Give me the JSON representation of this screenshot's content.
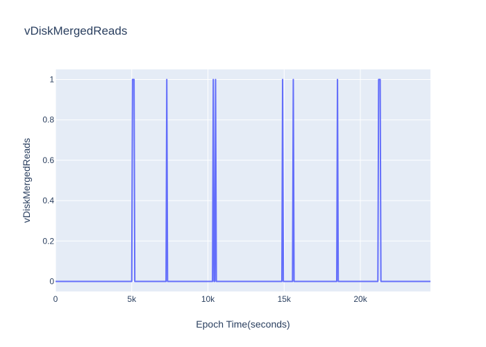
{
  "chart_data": {
    "type": "line",
    "title": "vDiskMergedReads",
    "xlabel": "Epoch Time(seconds)",
    "ylabel": "vDiskMergedReads",
    "xlim": [
      0,
      24600
    ],
    "ylim": [
      -0.05,
      1.05
    ],
    "x_ticks": [
      0,
      5000,
      10000,
      15000,
      20000
    ],
    "x_tick_labels": [
      "0",
      "5k",
      "10k",
      "15k",
      "20k"
    ],
    "y_ticks": [
      0,
      0.2,
      0.4,
      0.6,
      0.8,
      1
    ],
    "y_tick_labels": [
      "0",
      "0.2",
      "0.4",
      "0.6",
      "0.8",
      "1"
    ],
    "grid": true,
    "line_color": "#636efa",
    "plot_bg": "#e5ecf6",
    "series": [
      {
        "x": [
          0,
          5000,
          5050,
          5150,
          5200,
          7250,
          7300,
          7350,
          10300,
          10350,
          10400,
          10450,
          10500,
          10550,
          14850,
          14900,
          14950,
          15550,
          15600,
          15650,
          18450,
          18500,
          18550,
          21150,
          21200,
          21300,
          21350,
          24600
        ],
        "y": [
          0,
          0,
          1,
          1,
          0,
          0,
          1,
          0,
          0,
          1,
          0,
          0,
          1,
          0,
          0,
          1,
          0,
          0,
          1,
          0,
          0,
          1,
          0,
          0,
          1,
          1,
          0,
          0
        ]
      }
    ]
  }
}
